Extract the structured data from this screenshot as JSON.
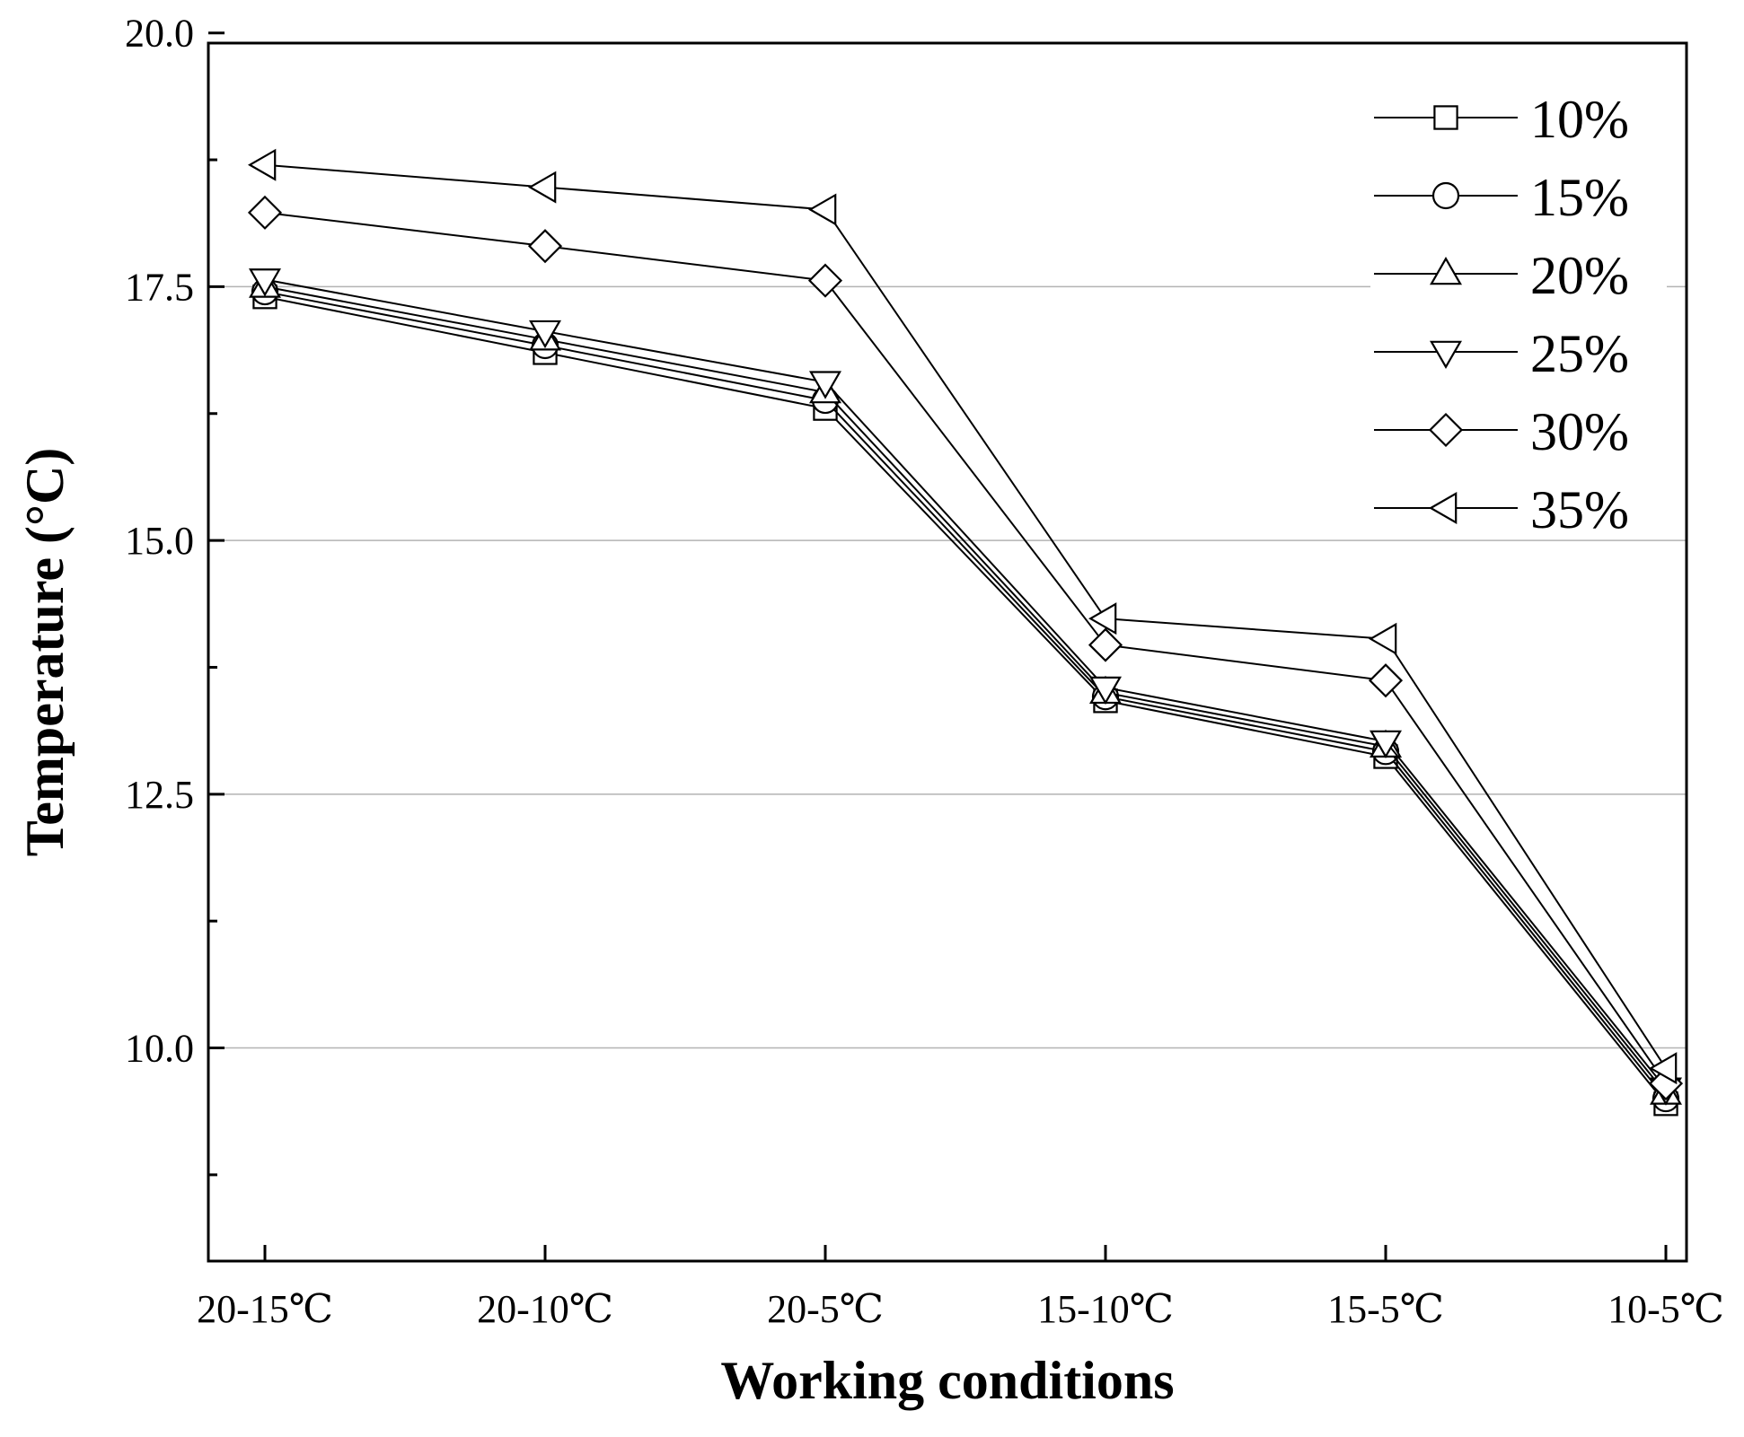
{
  "chart_data": {
    "type": "line",
    "xlabel": "Working conditions",
    "ylabel": "Temperature (°C)",
    "categories": [
      "20-15℃",
      "20-10℃",
      "20-5℃",
      "15-10℃",
      "15-5℃",
      "10-5℃"
    ],
    "ylim": [
      7.9,
      19.9
    ],
    "yticks": [
      10.0,
      12.5,
      15.0,
      17.5,
      20.0
    ],
    "ytick_labels": [
      "10.0",
      "12.5",
      "15.0",
      "17.5",
      "20.0"
    ],
    "grid": "horizontal",
    "legend_position": "top-right",
    "series": [
      {
        "name": "10%",
        "marker": "square",
        "values": [
          17.4,
          16.85,
          16.3,
          13.42,
          12.87,
          9.45
        ]
      },
      {
        "name": "15%",
        "marker": "circle",
        "values": [
          17.45,
          16.92,
          16.38,
          13.46,
          12.92,
          9.5
        ]
      },
      {
        "name": "20%",
        "marker": "triangle-up",
        "values": [
          17.5,
          16.98,
          16.46,
          13.5,
          12.97,
          9.55
        ]
      },
      {
        "name": "25%",
        "marker": "triangle-down",
        "values": [
          17.57,
          17.06,
          16.56,
          13.55,
          13.02,
          9.6
        ]
      },
      {
        "name": "30%",
        "marker": "diamond",
        "values": [
          18.23,
          17.9,
          17.56,
          13.97,
          13.62,
          9.65
        ]
      },
      {
        "name": "35%",
        "marker": "triangle-left",
        "values": [
          18.7,
          18.48,
          18.26,
          14.23,
          14.03,
          9.8
        ]
      }
    ]
  }
}
